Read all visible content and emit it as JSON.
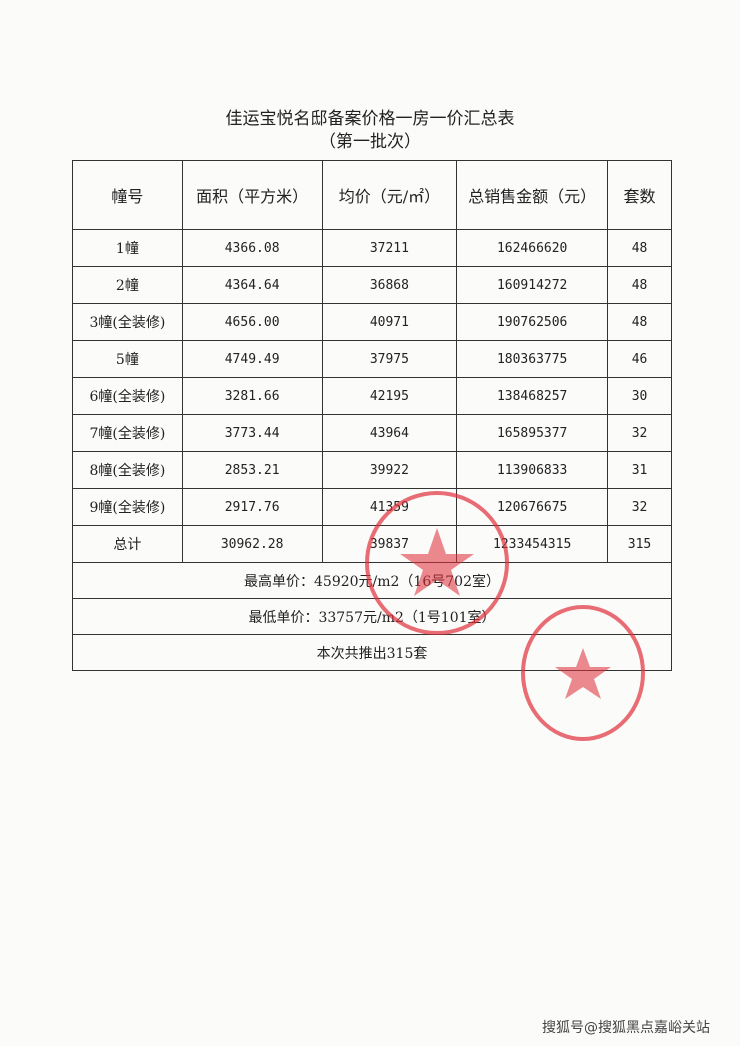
{
  "title": "佳运宝悦名邸备案价格一房一价汇总表",
  "subtitle": "（第一批次）",
  "table": {
    "headers": [
      "幢号",
      "面积（平方米）",
      "均价（元/㎡）",
      "总销售金额（元）",
      "套数"
    ],
    "rows": [
      [
        "1幢",
        "4366.08",
        "37211",
        "162466620",
        "48"
      ],
      [
        "2幢",
        "4364.64",
        "36868",
        "160914272",
        "48"
      ],
      [
        "3幢(全装修)",
        "4656.00",
        "40971",
        "190762506",
        "48"
      ],
      [
        "5幢",
        "4749.49",
        "37975",
        "180363775",
        "46"
      ],
      [
        "6幢(全装修)",
        "3281.66",
        "42195",
        "138468257",
        "30"
      ],
      [
        "7幢(全装修)",
        "3773.44",
        "43964",
        "165895377",
        "32"
      ],
      [
        "8幢(全装修)",
        "2853.21",
        "39922",
        "113906833",
        "31"
      ],
      [
        "9幢(全装修)",
        "2917.76",
        "41359",
        "120676675",
        "32"
      ],
      [
        "总计",
        "30962.28",
        "39837",
        "1233454315",
        "315"
      ]
    ],
    "summary": [
      "最高单价：45920元/m2（16号702室）",
      "最低单价：33757元/m2（1号101室）",
      "本次共推出315套"
    ]
  },
  "stamp_color": "#e0303a",
  "watermark": "搜狐号@搜狐黑点嘉峪关站"
}
